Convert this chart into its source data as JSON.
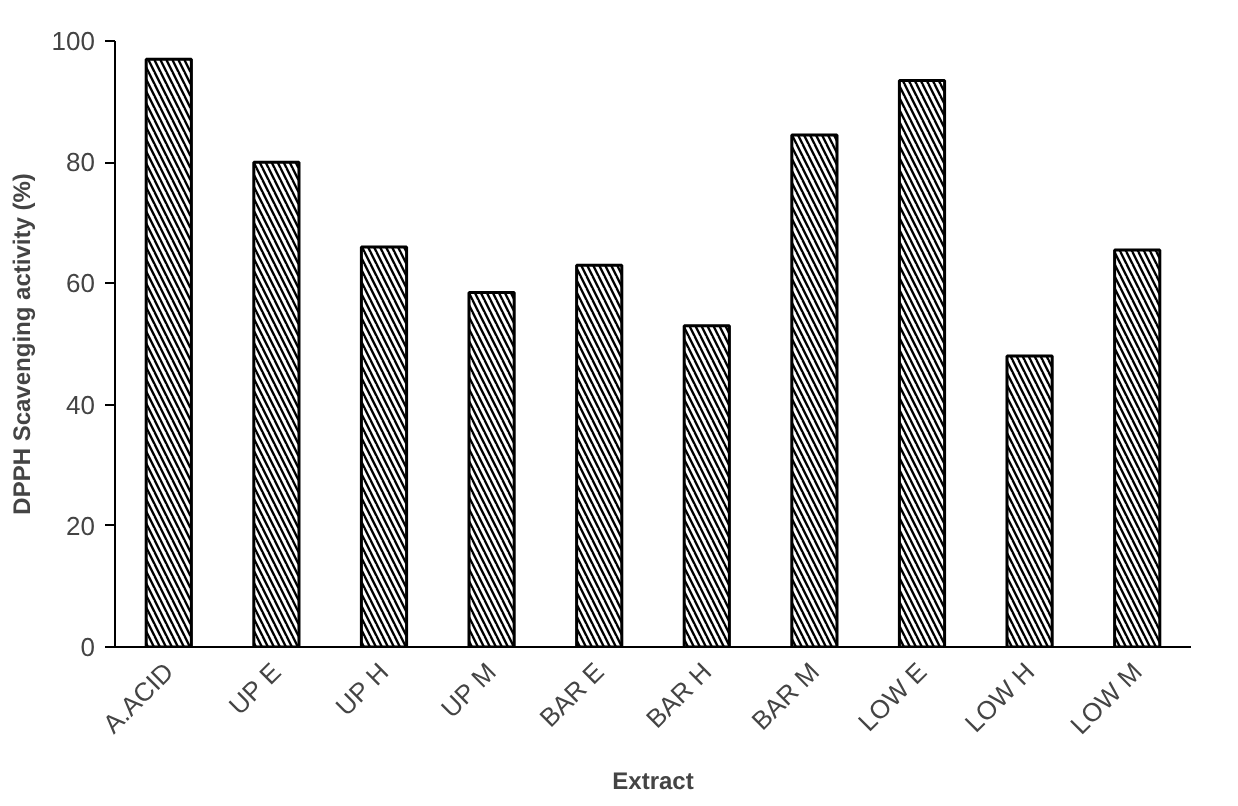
{
  "chart_data": {
    "type": "bar",
    "xlabel": "Extract",
    "ylabel": "DPPH Scavenging activity (%)",
    "categories": [
      "A.ACID",
      "UP E",
      "UP H",
      "UP M",
      "BAR E",
      "BAR H",
      "BAR M",
      "LOW E",
      "LOW H",
      "LOW M"
    ],
    "values": [
      97,
      80,
      66,
      58.5,
      63,
      53,
      84.5,
      93.5,
      48,
      65.5
    ],
    "color": "#000000",
    "ylim": [
      0,
      100
    ],
    "yticks": [
      0,
      20,
      40,
      60,
      80,
      100
    ],
    "grid": false
  }
}
